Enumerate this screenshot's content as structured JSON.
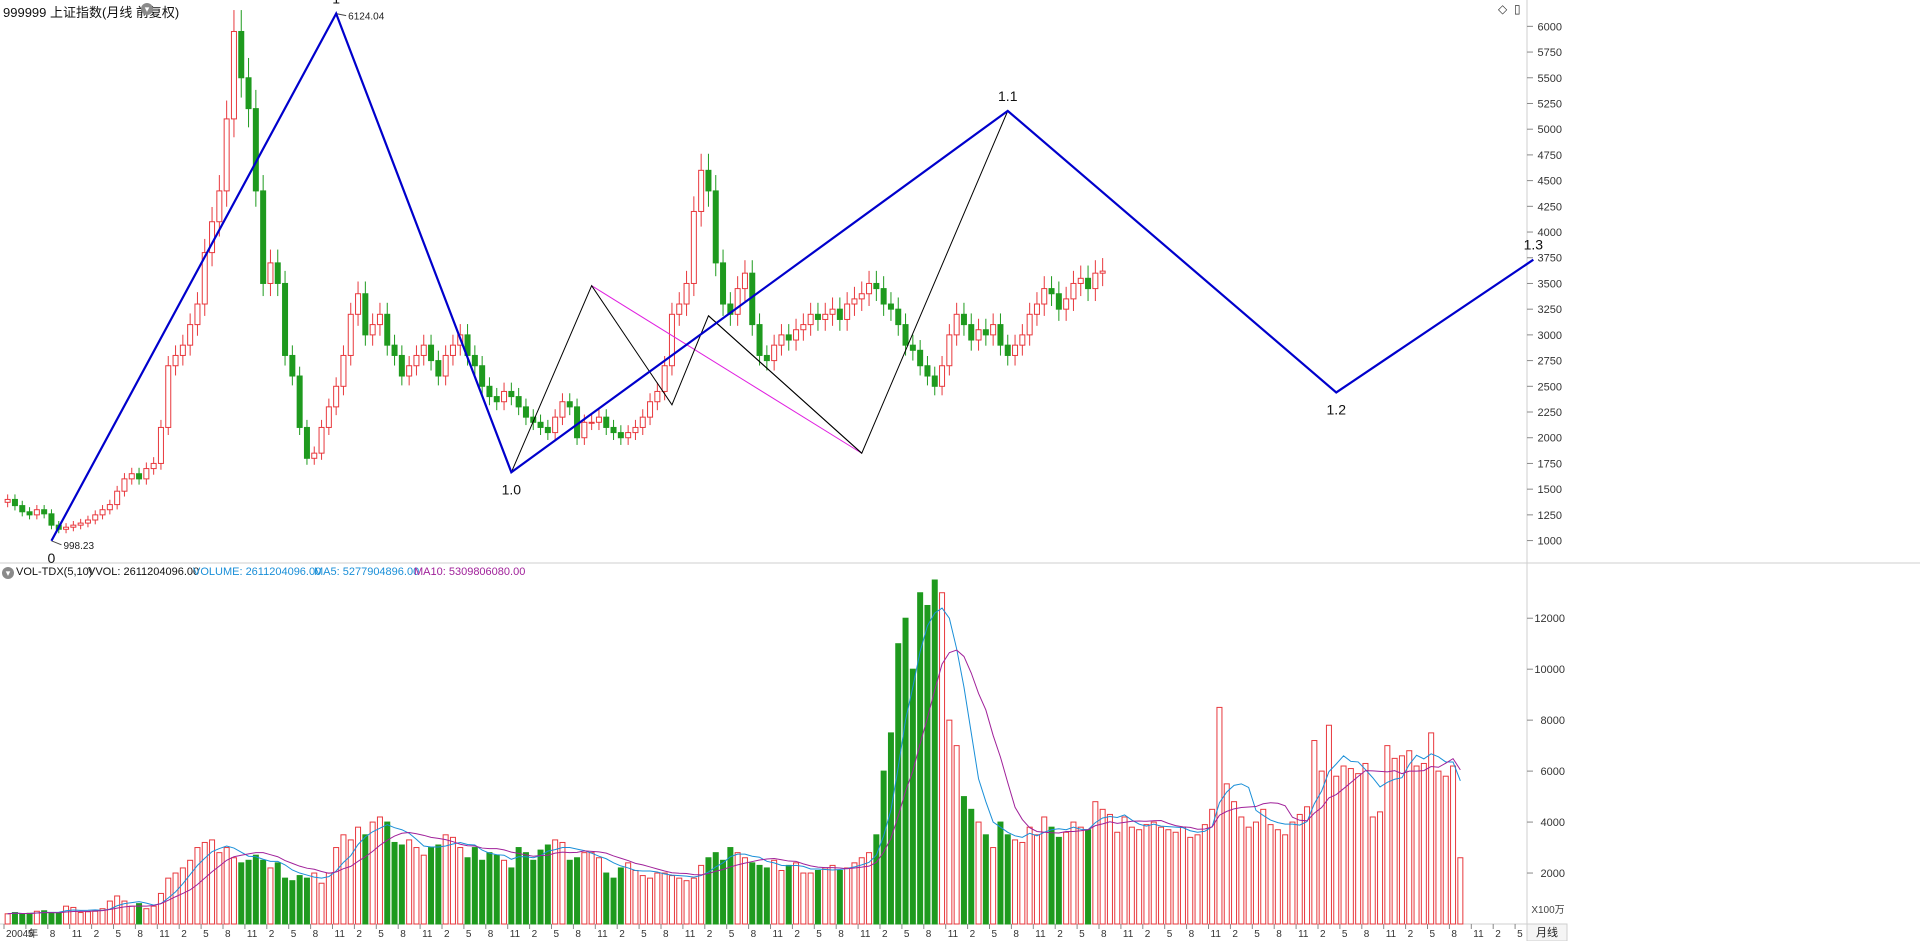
{
  "header": {
    "title": "999999 上证指数(月线 前复权)",
    "menu_icon": "chevron-down-icon"
  },
  "window_icons": {
    "diamond": "◇",
    "panel": "▯"
  },
  "volume_header": {
    "indicator": "VOL-TDX(5,10)",
    "vvol": "VVOL: 2611204096.00",
    "volume": "VOLUME: 2611204096.00",
    "ma5": "MA5: 5277904896.00",
    "ma10": "MA10: 5309806080.00",
    "colors": {
      "volume": "#1a8fd8",
      "ma5": "#1a8fd8",
      "ma10": "#a0219a"
    }
  },
  "period_label": "月线",
  "volume_unit": "X100万",
  "colors": {
    "up": "#e8383d",
    "down": "#1e9a1e",
    "wave_main": "#0000cc",
    "wave_sub": "#000000",
    "trend_channel": "#e020e0",
    "grid": "#d8d8d8"
  },
  "chart_data": [
    {
      "type": "candlestick",
      "title": "999999 上证指数(月线 前复权)",
      "y_axis_side": "right",
      "yticks": [
        1000,
        1250,
        1500,
        1750,
        2000,
        2250,
        2500,
        2750,
        3000,
        3250,
        3500,
        3750,
        4000,
        4250,
        4500,
        4750,
        5000,
        5250,
        5500,
        5750,
        6000
      ],
      "ylim": [
        850,
        6120
      ],
      "x_tick_labels": [
        "2004年",
        "5",
        "8",
        "11",
        "2",
        "5",
        "8",
        "11",
        "2",
        "5",
        "8",
        "11",
        "2",
        "5",
        "8",
        "11",
        "2",
        "5",
        "8",
        "11",
        "2",
        "5",
        "8",
        "11",
        "2",
        "5",
        "8",
        "11",
        "2",
        "5",
        "8",
        "11",
        "2",
        "5",
        "8",
        "11",
        "2",
        "5",
        "8",
        "11",
        "2",
        "5",
        "8",
        "11",
        "2",
        "5",
        "8",
        "11",
        "2",
        "5",
        "8",
        "11",
        "2",
        "5",
        "8",
        "11",
        "2",
        "5",
        "8",
        "11",
        "2",
        "5",
        "8",
        "11",
        "2",
        "5",
        "8",
        "11",
        "2",
        "5",
        "8",
        "11",
        "2",
        "5"
      ],
      "x_tick_every": 3,
      "price_annotations": [
        {
          "label": "6124.04",
          "month_index": 45,
          "value": 6124
        },
        {
          "label": "998.23",
          "month_index": 6,
          "value": 998
        }
      ],
      "close_series": [
        1400,
        1340,
        1280,
        1250,
        1300,
        1260,
        1150,
        1110,
        1130,
        1150,
        1170,
        1200,
        1250,
        1300,
        1350,
        1480,
        1600,
        1650,
        1600,
        1700,
        1750,
        2100,
        2700,
        2800,
        2900,
        3100,
        3300,
        3800,
        4100,
        4400,
        5100,
        5950,
        5500,
        5200,
        4400,
        3500,
        3700,
        3500,
        2800,
        2600,
        2100,
        1800,
        1850,
        2100,
        2300,
        2500,
        2800,
        3200,
        3400,
        3000,
        3100,
        3200,
        2900,
        2800,
        2600,
        2700,
        2800,
        2900,
        2750,
        2600,
        2800,
        2900,
        3000,
        2800,
        2700,
        2500,
        2400,
        2350,
        2450,
        2400,
        2300,
        2200,
        2150,
        2100,
        2050,
        2200,
        2350,
        2300,
        2000,
        2150,
        2150,
        2200,
        2100,
        2050,
        2000,
        2050,
        2100,
        2200,
        2350,
        2450,
        2700,
        3200,
        3300,
        3500,
        4200,
        4600,
        4400,
        3700,
        3300,
        3200,
        3450,
        3600,
        3100,
        2800,
        2750,
        2900,
        3000,
        2950,
        3050,
        3100,
        3200,
        3150,
        3200,
        3250,
        3150,
        3300,
        3350,
        3400,
        3500,
        3450,
        3300,
        3250,
        3100,
        2900,
        2850,
        2700,
        2600,
        2500,
        2700,
        3000,
        3200,
        3100,
        2950,
        3050,
        3000,
        3100,
        2900,
        2800,
        2900,
        3000,
        3200,
        3300,
        3450,
        3400,
        3250,
        3350,
        3500,
        3550,
        3450,
        3600,
        3620
      ],
      "wave_labels": [
        {
          "label": "0",
          "month_index": 6,
          "value": 998,
          "side": "below"
        },
        {
          "label": "1",
          "month_index": 45,
          "value": 6124,
          "side": "above"
        },
        {
          "label": "1.0",
          "month_index": 69,
          "value": 1664,
          "side": "below"
        },
        {
          "label": "1.1",
          "month_index": 137,
          "value": 5178,
          "side": "above"
        },
        {
          "label": "1.2",
          "month_index": 182,
          "value": 2440,
          "side": "below"
        },
        {
          "label": "1.3",
          "month_index": 209,
          "value": 3731,
          "side": "above"
        }
      ],
      "wave_main_points": [
        [
          6,
          998
        ],
        [
          45,
          6124
        ],
        [
          69,
          1664
        ],
        [
          137,
          5178
        ],
        [
          182,
          2440
        ],
        [
          209,
          3731
        ]
      ],
      "wave_sub_points": [
        [
          69,
          1664
        ],
        [
          80,
          3478
        ],
        [
          91,
          2320
        ],
        [
          96,
          3186
        ],
        [
          117,
          1849
        ],
        [
          137,
          5178
        ]
      ],
      "trend_channel": [
        [
          80,
          3478
        ],
        [
          117,
          1849
        ]
      ],
      "trend_channel_2": [
        [
          96,
          3186
        ],
        [
          117,
          1849
        ]
      ]
    },
    {
      "type": "bar",
      "title": "VOL-TDX(5,10)",
      "unit": "X100万",
      "yticks": [
        2000,
        4000,
        6000,
        8000,
        10000,
        12000
      ],
      "ylim": [
        0,
        13500
      ],
      "series": [
        {
          "name": "VOLUME",
          "values": [
            400,
            450,
            380,
            420,
            500,
            520,
            450,
            420,
            700,
            650,
            450,
            480,
            500,
            600,
            900,
            1100,
            900,
            700,
            800,
            600,
            700,
            1200,
            1800,
            2000,
            2200,
            2500,
            3000,
            3200,
            3300,
            2800,
            3000,
            2600,
            2400,
            2500,
            2700,
            2500,
            2200,
            2400,
            1800,
            1700,
            1900,
            1800,
            2000,
            1600,
            2000,
            3000,
            3500,
            3300,
            3800,
            3500,
            4000,
            4200,
            4000,
            3200,
            3100,
            3300,
            3000,
            2700,
            3000,
            3100,
            3500,
            3400,
            3000,
            2600,
            3000,
            2500,
            2800,
            2700,
            2500,
            2200,
            3000,
            2800,
            2500,
            2900,
            3100,
            3300,
            3200,
            2500,
            2600,
            2800,
            2800,
            2600,
            2000,
            1800,
            2200,
            2400,
            2100,
            1900,
            1800,
            2000,
            2000,
            1900,
            1800,
            1700,
            1800,
            2300,
            2600,
            2800,
            2500,
            3000,
            2800,
            2600,
            2400,
            2300,
            2200,
            2500,
            2100,
            2300,
            2400,
            2000,
            2000,
            2100,
            2200,
            2300,
            2100,
            2200,
            2400,
            2600,
            2800,
            3500,
            6000,
            7500,
            11000,
            12000,
            10000,
            13000,
            12500,
            13500,
            13000,
            8000,
            7000,
            5000,
            4500,
            4000,
            3500,
            3000,
            4000,
            3500,
            3300,
            3200,
            3800,
            3500,
            4200,
            3800,
            3400,
            3600,
            4000,
            3800,
            3700,
            4800,
            4500,
            4300,
            3600,
            4200,
            3800,
            3700,
            3900,
            4000,
            3800,
            3700,
            3600,
            3800,
            3400,
            3500,
            3900,
            4500,
            8500,
            5500,
            4800,
            4200,
            3800,
            4000,
            4500,
            3900,
            3700,
            3500,
            4000,
            4300,
            4600,
            7200,
            6000,
            7800,
            5800,
            6200,
            6100,
            5900,
            6300,
            4200,
            4400,
            7000,
            6500,
            6600,
            6800,
            6200,
            6300,
            7500,
            6000,
            5800,
            6200,
            2600
          ]
        },
        {
          "name": "MA5",
          "values": []
        },
        {
          "name": "MA10",
          "values": []
        }
      ]
    }
  ]
}
